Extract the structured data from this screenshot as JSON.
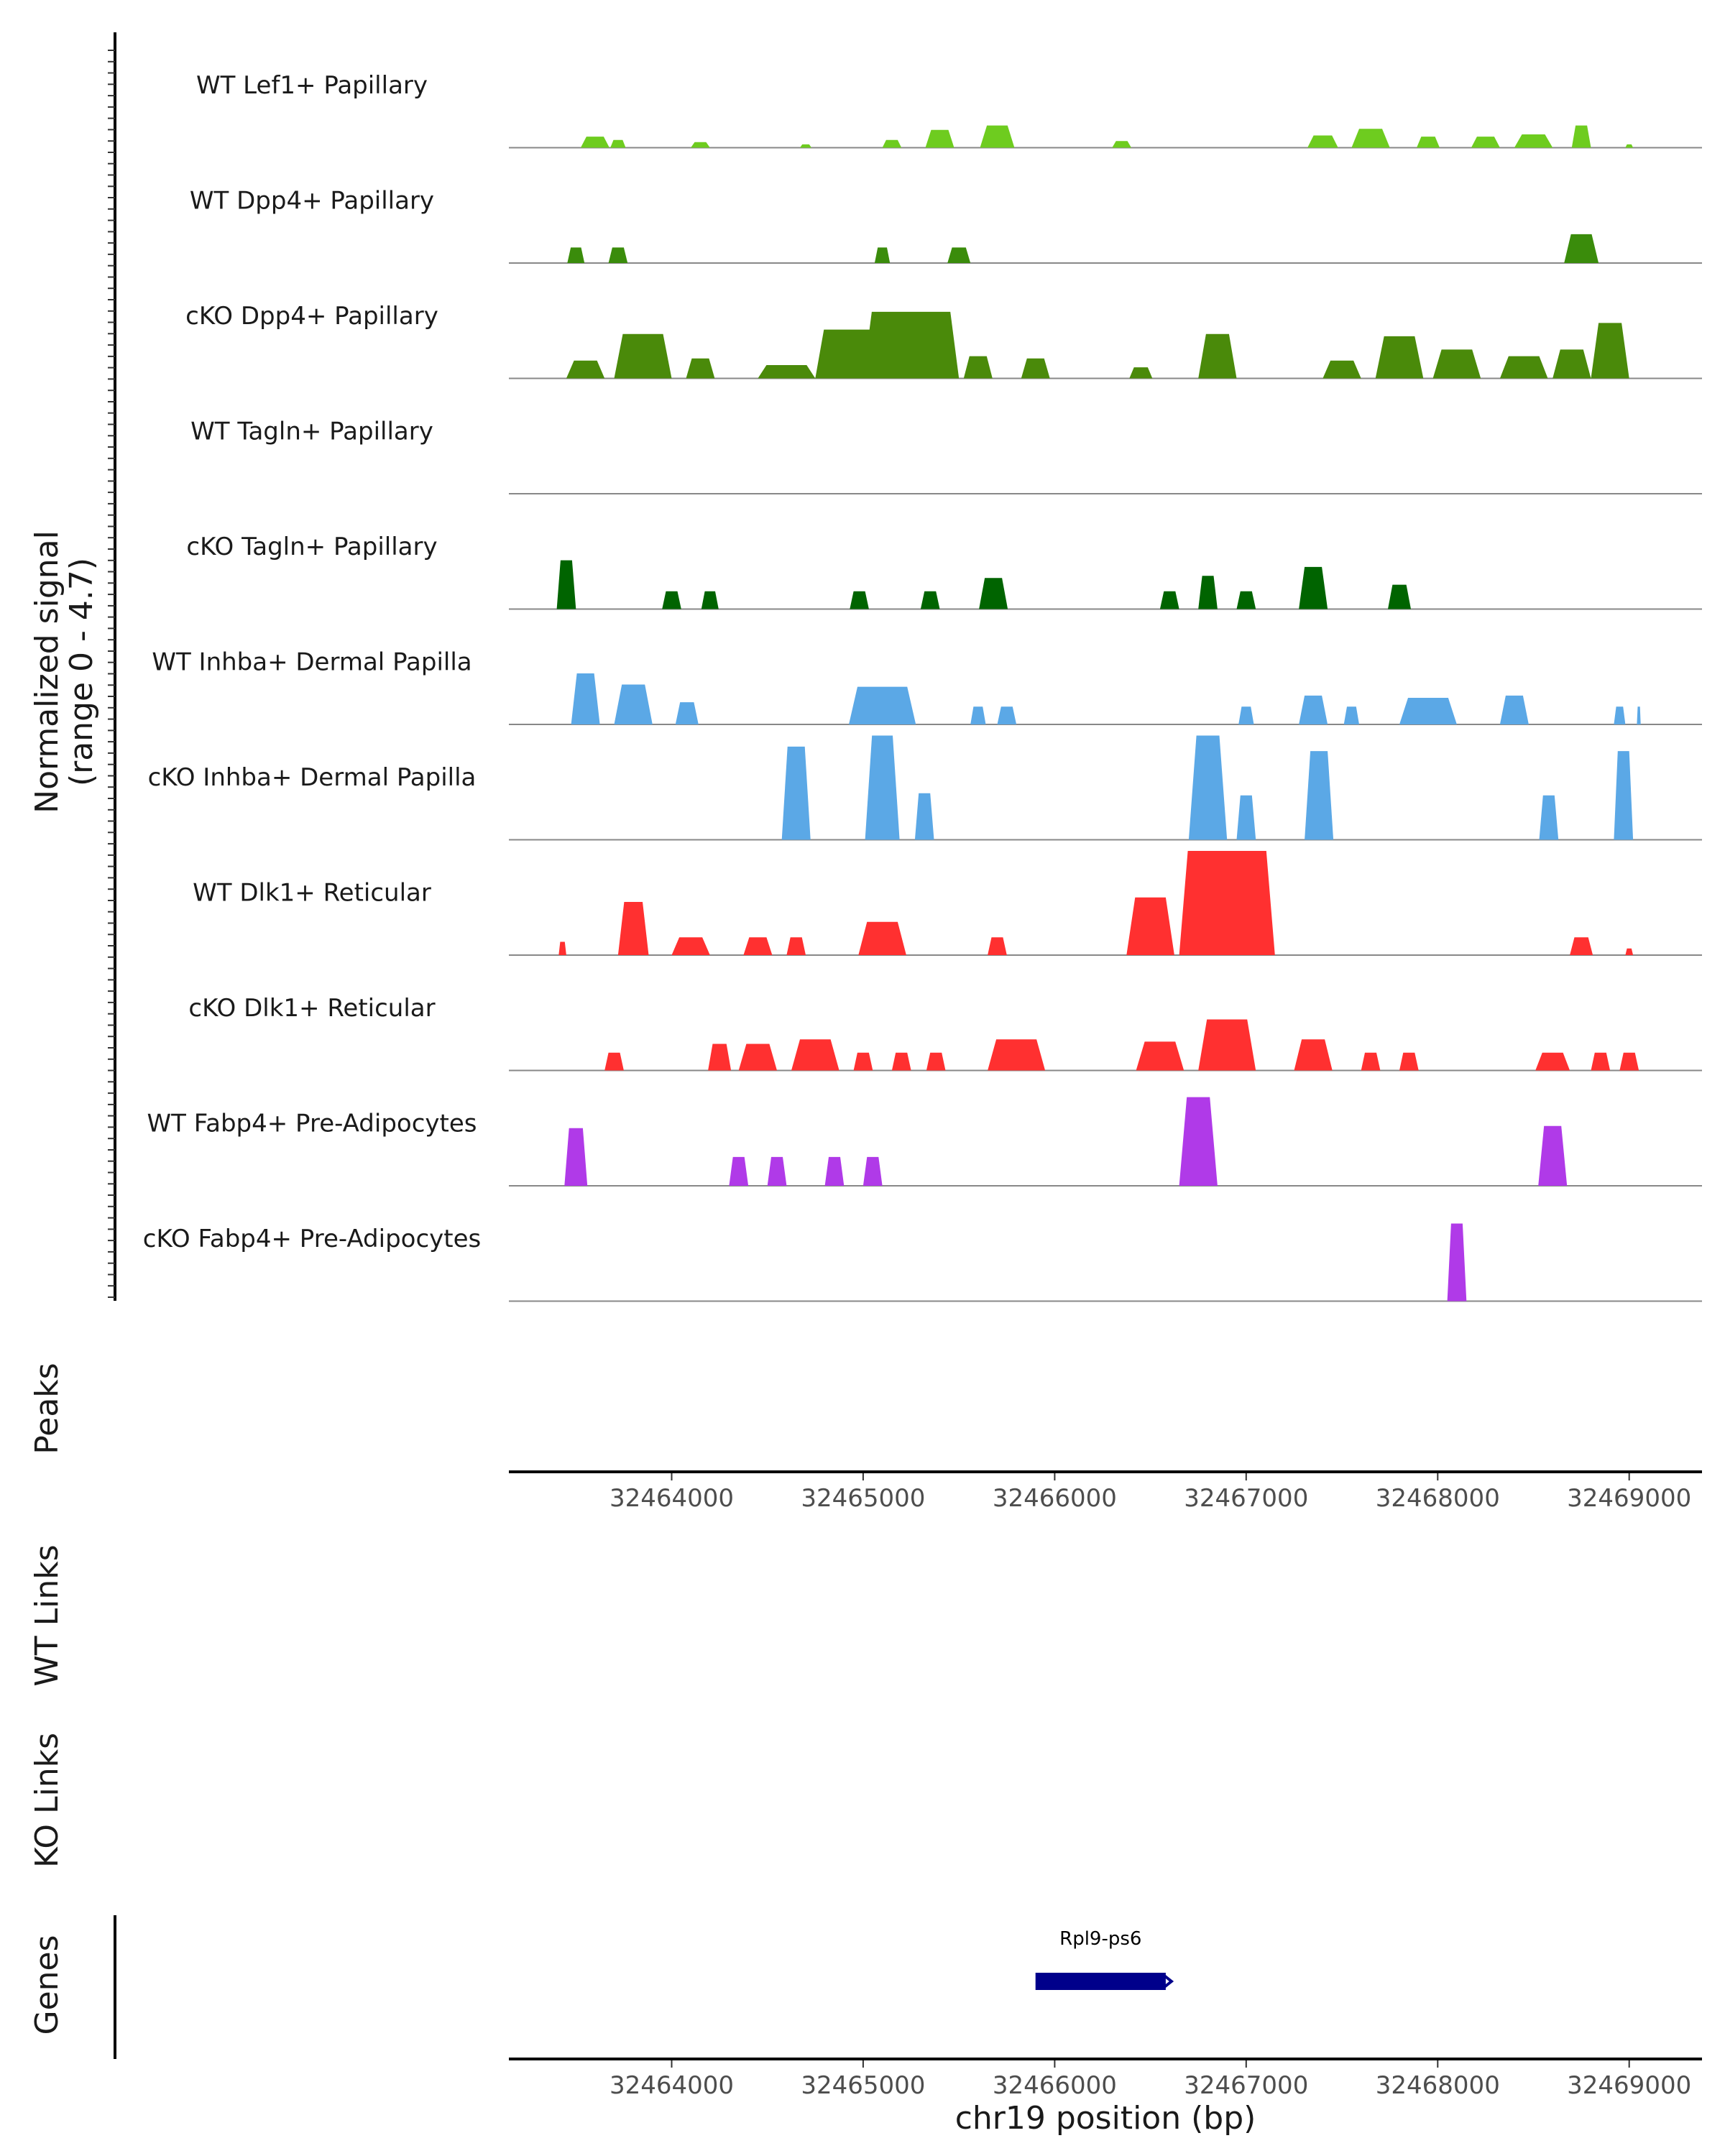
{
  "chart_data": {
    "type": "area",
    "title": "",
    "ylabel": "Normalized signal",
    "ylabel_range": "(range 0 - 4.7)",
    "y_range": [
      0,
      4.7
    ],
    "xlabel": "chr19 position (bp)",
    "x_range": [
      32463150,
      32469380
    ],
    "x_ticks": [
      32464000,
      32465000,
      32466000,
      32467000,
      32468000,
      32469000
    ],
    "x_tick_labels": [
      "32464000",
      "32465000",
      "32466000",
      "32467000",
      "32468000",
      "32469000"
    ],
    "tracks": [
      {
        "name": "WT Lef1+ Papillary",
        "color": "#6ecc1f",
        "peaks": [
          [
            32463600,
            150,
            0.5
          ],
          [
            32463720,
            80,
            0.35
          ],
          [
            32464150,
            100,
            0.25
          ],
          [
            32464700,
            60,
            0.15
          ],
          [
            32465150,
            100,
            0.35
          ],
          [
            32465400,
            150,
            0.8
          ],
          [
            32465700,
            180,
            1.0
          ],
          [
            32466350,
            100,
            0.3
          ],
          [
            32467400,
            160,
            0.55
          ],
          [
            32467650,
            200,
            0.85
          ],
          [
            32467950,
            120,
            0.5
          ],
          [
            32468250,
            150,
            0.5
          ],
          [
            32468500,
            200,
            0.6
          ],
          [
            32468750,
            100,
            1.0
          ],
          [
            32469000,
            40,
            0.15
          ]
        ]
      },
      {
        "name": "WT Dpp4+ Papillary",
        "color": "#3a8c0b",
        "peaks": [
          [
            32463500,
            90,
            0.7
          ],
          [
            32463720,
            100,
            0.7
          ],
          [
            32465100,
            80,
            0.7
          ],
          [
            32465500,
            120,
            0.7
          ],
          [
            32468750,
            180,
            1.3
          ]
        ]
      },
      {
        "name": "cKO Dpp4+ Papillary",
        "color": "#4a8a0a",
        "peaks": [
          [
            32463550,
            200,
            0.8
          ],
          [
            32463850,
            300,
            2.0
          ],
          [
            32464150,
            150,
            0.9
          ],
          [
            32464600,
            300,
            0.6
          ],
          [
            32464950,
            400,
            2.2
          ],
          [
            32465250,
            500,
            3.0
          ],
          [
            32465600,
            150,
            1.0
          ],
          [
            32465900,
            150,
            0.9
          ],
          [
            32466450,
            120,
            0.5
          ],
          [
            32466850,
            200,
            2.0
          ],
          [
            32467500,
            200,
            0.8
          ],
          [
            32467800,
            250,
            1.9
          ],
          [
            32468100,
            250,
            1.3
          ],
          [
            32468450,
            250,
            1.0
          ],
          [
            32468700,
            200,
            1.3
          ],
          [
            32468900,
            200,
            2.5
          ]
        ]
      },
      {
        "name": "WT Tagln+ Papillary",
        "color": "#006400",
        "peaks": []
      },
      {
        "name": "cKO Tagln+ Papillary",
        "color": "#006400",
        "peaks": [
          [
            32463450,
            100,
            2.2
          ],
          [
            32464000,
            100,
            0.8
          ],
          [
            32464200,
            90,
            0.8
          ],
          [
            32464980,
            100,
            0.8
          ],
          [
            32465350,
            100,
            0.8
          ],
          [
            32465680,
            150,
            1.4
          ],
          [
            32466600,
            100,
            0.8
          ],
          [
            32466800,
            100,
            1.5
          ],
          [
            32467000,
            100,
            0.8
          ],
          [
            32467350,
            150,
            1.9
          ],
          [
            32467800,
            120,
            1.1
          ]
        ]
      },
      {
        "name": "WT Inhba+ Dermal Papilla",
        "color": "#5ba8e6",
        "peaks": [
          [
            32463550,
            150,
            2.3
          ],
          [
            32463800,
            200,
            1.8
          ],
          [
            32464080,
            120,
            1.0
          ],
          [
            32465100,
            350,
            1.7
          ],
          [
            32465600,
            80,
            0.8
          ],
          [
            32465750,
            100,
            0.8
          ],
          [
            32467000,
            80,
            0.8
          ],
          [
            32467350,
            150,
            1.3
          ],
          [
            32467550,
            80,
            0.8
          ],
          [
            32467950,
            300,
            1.2
          ],
          [
            32468400,
            150,
            1.3
          ],
          [
            32468950,
            60,
            0.8
          ],
          [
            32469050,
            20,
            0.8
          ]
        ]
      },
      {
        "name": "cKO Inhba+ Dermal Papilla",
        "color": "#5ba8e6",
        "peaks": [
          [
            32464650,
            150,
            4.2
          ],
          [
            32465100,
            180,
            4.7
          ],
          [
            32465320,
            100,
            2.1
          ],
          [
            32466800,
            200,
            4.7
          ],
          [
            32467000,
            100,
            2.0
          ],
          [
            32467380,
            150,
            4.0
          ],
          [
            32468580,
            100,
            2.0
          ],
          [
            32468970,
            100,
            4.0
          ]
        ]
      },
      {
        "name": "WT Dlk1+ Reticular",
        "color": "#ff3030",
        "peaks": [
          [
            32463430,
            40,
            0.6
          ],
          [
            32463800,
            160,
            2.4
          ],
          [
            32464100,
            200,
            0.8
          ],
          [
            32464450,
            150,
            0.8
          ],
          [
            32464650,
            100,
            0.8
          ],
          [
            32465100,
            250,
            1.5
          ],
          [
            32465700,
            100,
            0.8
          ],
          [
            32466500,
            250,
            2.6
          ],
          [
            32466900,
            500,
            4.7
          ],
          [
            32468750,
            120,
            0.8
          ],
          [
            32469000,
            40,
            0.3
          ]
        ]
      },
      {
        "name": "cKO Dlk1+ Reticular",
        "color": "#ff3030",
        "peaks": [
          [
            32463700,
            100,
            0.8
          ],
          [
            32464250,
            120,
            1.2
          ],
          [
            32464450,
            200,
            1.2
          ],
          [
            32464750,
            250,
            1.4
          ],
          [
            32465000,
            100,
            0.8
          ],
          [
            32465200,
            100,
            0.8
          ],
          [
            32465380,
            100,
            0.8
          ],
          [
            32465800,
            300,
            1.4
          ],
          [
            32466550,
            250,
            1.3
          ],
          [
            32466900,
            300,
            2.3
          ],
          [
            32467350,
            200,
            1.4
          ],
          [
            32467650,
            100,
            0.8
          ],
          [
            32467850,
            100,
            0.8
          ],
          [
            32468600,
            180,
            0.8
          ],
          [
            32468850,
            100,
            0.8
          ],
          [
            32469000,
            100,
            0.8
          ]
        ]
      },
      {
        "name": "WT Fabp4+ Pre-Adipocytes",
        "color": "#b03ae8",
        "peaks": [
          [
            32463500,
            120,
            2.6
          ],
          [
            32464350,
            100,
            1.3
          ],
          [
            32464550,
            100,
            1.3
          ],
          [
            32464850,
            100,
            1.3
          ],
          [
            32465050,
            100,
            1.3
          ],
          [
            32466750,
            200,
            4.0
          ],
          [
            32468600,
            150,
            2.7
          ]
        ]
      },
      {
        "name": "cKO Fabp4+ Pre-Adipocytes",
        "color": "#b03ae8",
        "peaks": [
          [
            32468100,
            100,
            3.5
          ]
        ]
      }
    ],
    "panels": [
      "Peaks",
      "WT Links",
      "KO Links",
      "Genes"
    ],
    "genes": [
      {
        "name": "Rpl9-ps6",
        "start": 32465900,
        "end": 32466580,
        "color": "#00008b"
      }
    ]
  }
}
